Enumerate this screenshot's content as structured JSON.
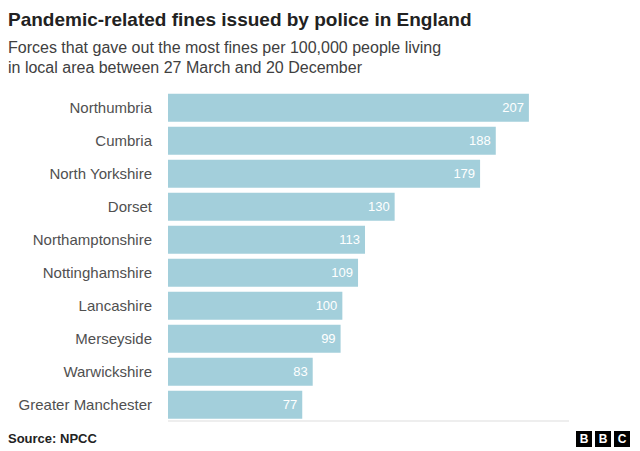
{
  "chart_data": {
    "type": "bar",
    "orientation": "horizontal",
    "title": "Pandemic-related fines issued by police in England",
    "subtitle": [
      "Forces that gave out the most fines per 100,000 people living",
      "in local area between 27 March and 20 December"
    ],
    "categories": [
      "Northumbria",
      "Cumbria",
      "North Yorkshire",
      "Dorset",
      "Northamptonshire",
      "Nottinghamshire",
      "Lancashire",
      "Merseyside",
      "Warwickshire",
      "Greater Manchester"
    ],
    "values": [
      207,
      188,
      179,
      130,
      113,
      109,
      100,
      99,
      83,
      77
    ],
    "color": "#a3cfdb",
    "xlim": [
      0,
      230
    ],
    "xticks": [],
    "tick_labels": "y",
    "data_labels": true,
    "grid": false,
    "source": "Source: NPCC",
    "logo": "BBC"
  }
}
